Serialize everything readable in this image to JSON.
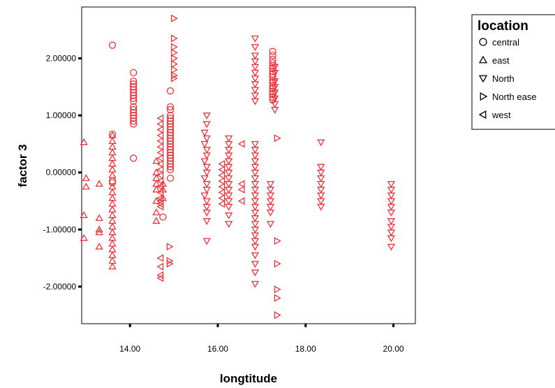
{
  "chart_data": {
    "type": "scatter",
    "xlabel": "longtitude",
    "ylabel": "factor 3",
    "xlim": [
      12.9,
      20.5
    ],
    "ylim": [
      -2.65,
      2.9
    ],
    "x_ticks": [
      14,
      16,
      18,
      20
    ],
    "x_tick_labels": [
      "14.00",
      "16.00",
      "18.00",
      "20.00"
    ],
    "y_ticks": [
      2,
      1,
      0,
      -1,
      -2
    ],
    "y_tick_labels": [
      "2.00000",
      "1.00000",
      "0.00000",
      "-1.00000",
      "-2.00000"
    ],
    "grid": false,
    "marker_color": "#e8343c",
    "legend": {
      "title": "location",
      "placement": "right",
      "entries": [
        {
          "label": "central",
          "marker": "circle"
        },
        {
          "label": "east",
          "marker": "triangle-up"
        },
        {
          "label": "North",
          "marker": "triangle-down"
        },
        {
          "label": "North ease",
          "marker": "triangle-right"
        },
        {
          "label": "west",
          "marker": "triangle-left"
        }
      ]
    },
    "series": [
      {
        "name": "central",
        "marker": "circle",
        "points": [
          [
            13.6,
            2.23
          ],
          [
            13.6,
            0.67
          ],
          [
            13.6,
            -0.15
          ],
          [
            13.6,
            -0.18
          ],
          [
            14.08,
            1.75
          ],
          [
            14.08,
            1.6
          ],
          [
            14.08,
            1.55
          ],
          [
            14.08,
            1.5
          ],
          [
            14.08,
            1.45
          ],
          [
            14.08,
            1.4
          ],
          [
            14.08,
            1.35
          ],
          [
            14.08,
            1.3
          ],
          [
            14.08,
            1.25
          ],
          [
            14.08,
            1.15
          ],
          [
            14.08,
            1.1
          ],
          [
            14.08,
            1.05
          ],
          [
            14.08,
            1.0
          ],
          [
            14.08,
            0.95
          ],
          [
            14.08,
            0.9
          ],
          [
            14.08,
            0.85
          ],
          [
            14.08,
            0.25
          ],
          [
            14.75,
            -0.78
          ],
          [
            14.92,
            1.43
          ],
          [
            14.92,
            1.15
          ],
          [
            14.92,
            1.1
          ],
          [
            14.92,
            1.0
          ],
          [
            14.92,
            0.95
          ],
          [
            14.92,
            0.9
          ],
          [
            14.92,
            0.85
          ],
          [
            14.92,
            0.8
          ],
          [
            14.92,
            0.75
          ],
          [
            14.92,
            0.7
          ],
          [
            14.92,
            0.65
          ],
          [
            14.92,
            0.6
          ],
          [
            14.92,
            0.55
          ],
          [
            14.92,
            0.5
          ],
          [
            14.92,
            0.45
          ],
          [
            14.92,
            0.4
          ],
          [
            14.92,
            0.35
          ],
          [
            14.92,
            0.3
          ],
          [
            14.92,
            0.25
          ],
          [
            14.92,
            0.2
          ],
          [
            14.92,
            0.15
          ],
          [
            14.92,
            0.1
          ],
          [
            14.92,
            0.05
          ],
          [
            14.92,
            -0.1
          ],
          [
            17.25,
            2.12
          ],
          [
            17.25,
            2.05
          ],
          [
            17.25,
            1.98
          ],
          [
            17.25,
            1.92
          ],
          [
            17.25,
            1.87
          ],
          [
            17.25,
            1.82
          ],
          [
            17.25,
            1.77
          ],
          [
            17.25,
            1.72
          ],
          [
            17.25,
            1.67
          ],
          [
            17.25,
            1.62
          ],
          [
            17.25,
            1.57
          ],
          [
            17.25,
            1.52
          ],
          [
            17.25,
            1.47
          ],
          [
            17.25,
            1.42
          ],
          [
            17.25,
            1.37
          ],
          [
            17.25,
            1.32
          ],
          [
            17.25,
            1.27
          ]
        ]
      },
      {
        "name": "east",
        "marker": "triangle-up",
        "points": [
          [
            12.95,
            0.53
          ],
          [
            13.0,
            -0.1
          ],
          [
            13.0,
            -0.25
          ],
          [
            12.95,
            -0.75
          ],
          [
            12.95,
            -1.15
          ],
          [
            13.3,
            -0.2
          ],
          [
            13.3,
            -0.8
          ],
          [
            13.3,
            -1.0
          ],
          [
            13.3,
            -1.05
          ],
          [
            13.3,
            -1.3
          ],
          [
            13.6,
            0.65
          ],
          [
            13.6,
            0.55
          ],
          [
            13.6,
            0.45
          ],
          [
            13.6,
            0.35
          ],
          [
            13.6,
            0.25
          ],
          [
            13.6,
            0.15
          ],
          [
            13.6,
            0.05
          ],
          [
            13.6,
            -0.05
          ],
          [
            13.6,
            -0.25
          ],
          [
            13.6,
            -0.35
          ],
          [
            13.6,
            -0.45
          ],
          [
            13.6,
            -0.55
          ],
          [
            13.6,
            -0.65
          ],
          [
            13.6,
            -0.75
          ],
          [
            13.6,
            -0.85
          ],
          [
            13.6,
            -0.95
          ],
          [
            13.6,
            -1.05
          ],
          [
            13.6,
            -1.15
          ],
          [
            13.6,
            -1.25
          ],
          [
            13.6,
            -1.35
          ],
          [
            13.6,
            -1.45
          ],
          [
            13.6,
            -1.55
          ],
          [
            13.6,
            -1.65
          ],
          [
            14.6,
            0.2
          ],
          [
            14.6,
            0.0
          ],
          [
            14.6,
            -0.1
          ],
          [
            14.6,
            -0.2
          ],
          [
            14.6,
            -0.3
          ],
          [
            14.6,
            -0.5
          ],
          [
            14.6,
            -0.7
          ],
          [
            14.6,
            -0.85
          ],
          [
            14.75,
            -0.2
          ],
          [
            14.75,
            -0.3
          ],
          [
            14.75,
            -0.45
          ]
        ]
      },
      {
        "name": "North",
        "marker": "triangle-down",
        "points": [
          [
            15.75,
            1.0
          ],
          [
            15.75,
            0.85
          ],
          [
            15.7,
            0.7
          ],
          [
            15.75,
            0.6
          ],
          [
            15.7,
            0.5
          ],
          [
            15.75,
            0.4
          ],
          [
            15.75,
            0.3
          ],
          [
            15.7,
            0.2
          ],
          [
            15.75,
            0.1
          ],
          [
            15.75,
            0.0
          ],
          [
            15.7,
            -0.1
          ],
          [
            15.75,
            -0.2
          ],
          [
            15.75,
            -0.3
          ],
          [
            15.7,
            -0.4
          ],
          [
            15.75,
            -0.5
          ],
          [
            15.75,
            -0.6
          ],
          [
            15.75,
            -0.7
          ],
          [
            15.75,
            -0.85
          ],
          [
            15.75,
            -1.2
          ],
          [
            16.25,
            0.6
          ],
          [
            16.25,
            0.5
          ],
          [
            16.25,
            0.4
          ],
          [
            16.25,
            0.3
          ],
          [
            16.25,
            0.2
          ],
          [
            16.25,
            0.1
          ],
          [
            16.25,
            0.0
          ],
          [
            16.25,
            -0.1
          ],
          [
            16.25,
            -0.2
          ],
          [
            16.25,
            -0.3
          ],
          [
            16.25,
            -0.4
          ],
          [
            16.25,
            -0.5
          ],
          [
            16.25,
            -0.6
          ],
          [
            16.25,
            -0.75
          ],
          [
            16.25,
            -0.9
          ],
          [
            16.85,
            2.35
          ],
          [
            16.85,
            2.2
          ],
          [
            16.85,
            2.05
          ],
          [
            16.85,
            1.95
          ],
          [
            16.85,
            1.85
          ],
          [
            16.85,
            1.75
          ],
          [
            16.85,
            1.65
          ],
          [
            16.85,
            1.55
          ],
          [
            16.85,
            1.45
          ],
          [
            16.85,
            1.35
          ],
          [
            16.85,
            1.25
          ],
          [
            16.85,
            0.5
          ],
          [
            16.85,
            0.4
          ],
          [
            16.85,
            0.3
          ],
          [
            16.85,
            0.2
          ],
          [
            16.85,
            0.1
          ],
          [
            16.85,
            0.0
          ],
          [
            16.85,
            -0.1
          ],
          [
            16.85,
            -0.2
          ],
          [
            16.85,
            -0.3
          ],
          [
            16.85,
            -0.4
          ],
          [
            16.85,
            -0.5
          ],
          [
            16.85,
            -0.6
          ],
          [
            16.85,
            -0.7
          ],
          [
            16.85,
            -0.8
          ],
          [
            16.85,
            -0.9
          ],
          [
            16.85,
            -1.0
          ],
          [
            16.85,
            -1.1
          ],
          [
            16.85,
            -1.2
          ],
          [
            16.85,
            -1.3
          ],
          [
            16.85,
            -1.45
          ],
          [
            16.85,
            -1.6
          ],
          [
            16.85,
            -1.75
          ],
          [
            16.85,
            -1.95
          ],
          [
            17.3,
            1.85
          ],
          [
            17.3,
            1.75
          ],
          [
            17.3,
            1.6
          ],
          [
            17.3,
            1.5
          ],
          [
            17.3,
            1.4
          ],
          [
            17.3,
            1.3
          ],
          [
            17.3,
            1.2
          ],
          [
            17.3,
            1.1
          ],
          [
            17.2,
            -0.2
          ],
          [
            17.2,
            -0.3
          ],
          [
            17.2,
            -0.4
          ],
          [
            17.2,
            -0.5
          ],
          [
            17.2,
            -0.6
          ],
          [
            17.2,
            -0.7
          ],
          [
            17.2,
            -0.9
          ],
          [
            18.35,
            0.53
          ],
          [
            18.35,
            0.1
          ],
          [
            18.35,
            0.0
          ],
          [
            18.35,
            -0.1
          ],
          [
            18.35,
            -0.2
          ],
          [
            18.35,
            -0.3
          ],
          [
            18.35,
            -0.4
          ],
          [
            18.35,
            -0.5
          ],
          [
            18.35,
            -0.6
          ],
          [
            19.95,
            -0.2
          ],
          [
            19.95,
            -0.3
          ],
          [
            19.95,
            -0.4
          ],
          [
            19.95,
            -0.5
          ],
          [
            19.95,
            -0.6
          ],
          [
            19.95,
            -0.7
          ],
          [
            19.95,
            -0.85
          ],
          [
            19.95,
            -0.95
          ],
          [
            19.95,
            -1.05
          ],
          [
            19.95,
            -1.15
          ],
          [
            19.95,
            -1.3
          ]
        ]
      },
      {
        "name": "North ease",
        "marker": "triangle-right",
        "points": [
          [
            15.0,
            2.7
          ],
          [
            15.0,
            2.35
          ],
          [
            15.0,
            2.2
          ],
          [
            15.0,
            2.1
          ],
          [
            15.0,
            2.0
          ],
          [
            15.0,
            1.9
          ],
          [
            15.0,
            1.8
          ],
          [
            15.0,
            1.7
          ],
          [
            15.0,
            1.65
          ],
          [
            17.35,
            0.6
          ],
          [
            14.9,
            -1.3
          ],
          [
            14.9,
            -1.55
          ],
          [
            14.9,
            -1.6
          ],
          [
            17.35,
            -1.2
          ],
          [
            17.35,
            -1.6
          ],
          [
            17.35,
            -2.05
          ],
          [
            17.35,
            -2.2
          ],
          [
            17.35,
            -2.5
          ]
        ]
      },
      {
        "name": "west",
        "marker": "triangle-left",
        "points": [
          [
            14.7,
            0.95
          ],
          [
            14.7,
            0.85
          ],
          [
            14.7,
            0.75
          ],
          [
            14.7,
            0.65
          ],
          [
            14.7,
            0.55
          ],
          [
            14.7,
            0.45
          ],
          [
            14.7,
            0.35
          ],
          [
            14.7,
            0.25
          ],
          [
            14.7,
            0.15
          ],
          [
            14.7,
            0.05
          ],
          [
            14.7,
            -0.05
          ],
          [
            14.7,
            -0.15
          ],
          [
            14.7,
            -0.25
          ],
          [
            14.7,
            -0.35
          ],
          [
            14.7,
            -0.45
          ],
          [
            14.7,
            -0.5
          ],
          [
            14.7,
            -0.55
          ],
          [
            14.7,
            -0.6
          ],
          [
            14.7,
            -1.5
          ],
          [
            14.7,
            -1.65
          ],
          [
            14.7,
            -1.8
          ],
          [
            14.7,
            -1.85
          ],
          [
            16.1,
            0.15
          ],
          [
            16.1,
            0.05
          ],
          [
            16.1,
            -0.05
          ],
          [
            16.1,
            -0.15
          ],
          [
            16.1,
            -0.25
          ],
          [
            16.1,
            -0.35
          ],
          [
            16.1,
            -0.45
          ],
          [
            16.1,
            -0.55
          ],
          [
            16.55,
            0.5
          ],
          [
            16.55,
            -0.2
          ],
          [
            16.55,
            -0.3
          ],
          [
            16.55,
            -0.5
          ]
        ]
      }
    ]
  }
}
